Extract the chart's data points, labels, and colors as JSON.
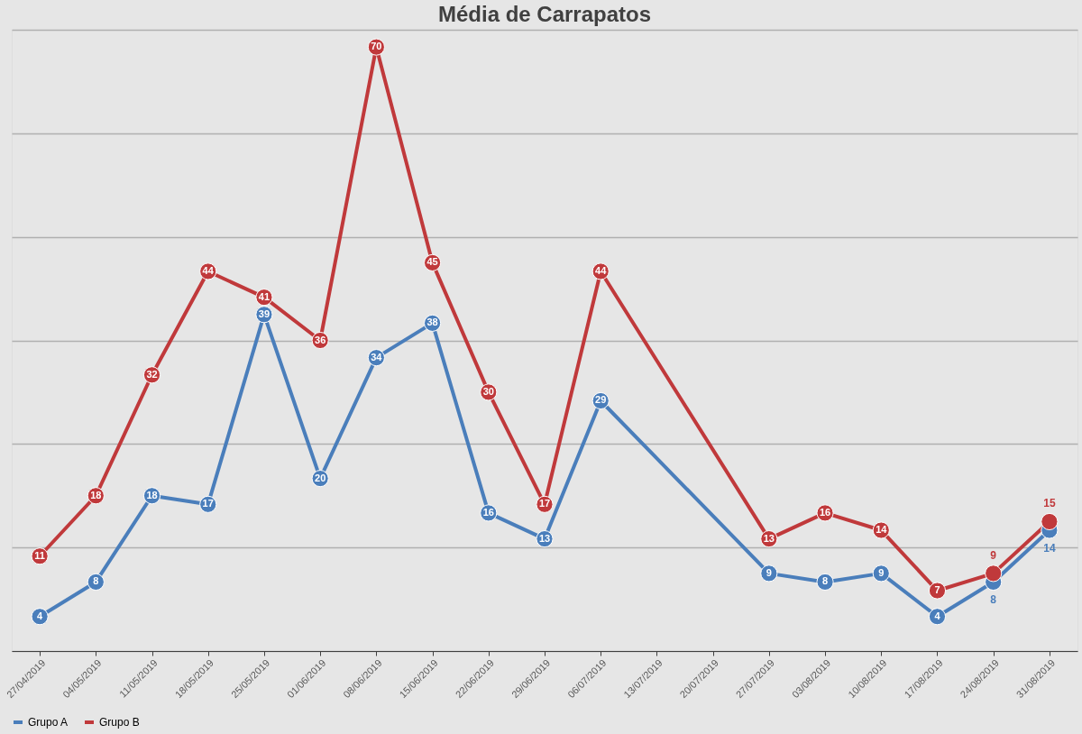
{
  "chart_data": {
    "type": "line",
    "title": "Média de Carrapatos",
    "categories": [
      "27/04/2019",
      "04/05/2019",
      "11/05/2019",
      "18/05/2019",
      "25/05/2019",
      "01/06/2019",
      "08/06/2019",
      "15/06/2019",
      "22/06/2019",
      "29/06/2019",
      "06/07/2019",
      "13/07/2019",
      "20/07/2019",
      "27/07/2019",
      "03/08/2019",
      "10/08/2019",
      "17/08/2019",
      "24/08/2019",
      "31/08/2019"
    ],
    "series": [
      {
        "name": "Grupo A",
        "color": "#4a7ebb",
        "values": [
          4,
          8,
          18,
          17,
          39,
          20,
          34,
          38,
          16,
          13,
          29,
          null,
          null,
          9,
          8,
          9,
          4,
          8,
          14
        ]
      },
      {
        "name": "Grupo B",
        "color": "#c0393b",
        "values": [
          11,
          18,
          32,
          44,
          41,
          36,
          70,
          45,
          30,
          17,
          44,
          null,
          null,
          13,
          16,
          14,
          7,
          9,
          15
        ]
      }
    ],
    "ylim": [
      0,
      72
    ],
    "yticks": [
      {
        "value": 0,
        "label": null
      },
      {
        "value": 12,
        "label": null
      },
      {
        "value": 24,
        "label": null
      },
      {
        "value": 36,
        "label": null
      },
      {
        "value": 48,
        "label": null
      },
      {
        "value": 60,
        "label": null
      },
      {
        "value": 72,
        "label": null
      }
    ],
    "tick_labels": "x",
    "grid": "y",
    "legend": "bottom",
    "marker": "circle",
    "line_style": "solid",
    "data_labels": true
  }
}
